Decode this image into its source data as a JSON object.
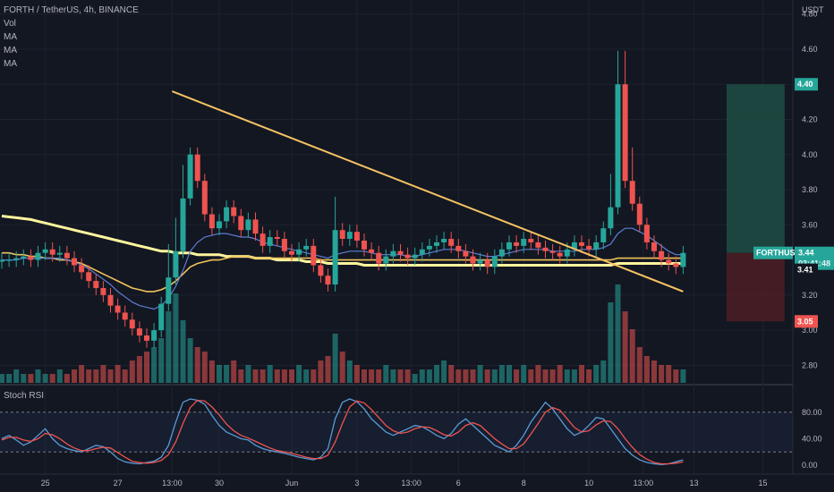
{
  "header": {
    "title": "FORTH / TetherUS, 4h, BINANCE",
    "indicators": [
      "Vol",
      "MA",
      "MA",
      "MA"
    ]
  },
  "currency_label": "USDT",
  "rsi_panel": {
    "title": "Stoch RSI"
  },
  "price_tags": {
    "target": "4.40",
    "symbol": "FORTHUSDT",
    "last": "3.44",
    "countdown": "03:41:48",
    "ma": "3.41",
    "stop": "3.05"
  },
  "colors": {
    "bull": "#26a69a",
    "bear": "#ef5350",
    "ma_long": "#fff59d",
    "ma_mid": "#f0c35a",
    "ma_short": "#5b7fd6",
    "trendline": "#f6c263",
    "rsi_k": "#5b9bd5",
    "rsi_d": "#ef5350",
    "target_zone": "#1e4d44",
    "stop_zone": "#4d1e24"
  },
  "chart_data": [
    {
      "type": "candlestick",
      "title": "FORTH / TetherUS, 4h, BINANCE",
      "ylabel": "USDT",
      "ylim": [
        2.7,
        4.88
      ],
      "yticks": [
        "4.80",
        "4.60",
        "4.40",
        "4.20",
        "4.00",
        "3.80",
        "3.60",
        "3.20",
        "3.00",
        "2.80"
      ],
      "xticks": [
        "25",
        "27",
        "13:00",
        "30",
        "Jun",
        "3",
        "13:00",
        "6",
        "8",
        "10",
        "13:00",
        "13",
        "15"
      ],
      "x_domain": [
        0,
        94
      ],
      "xtick_positions": [
        6,
        16,
        23.5,
        30,
        40,
        49,
        56.5,
        63,
        72,
        81,
        88.5,
        95.5,
        105
      ],
      "close_series": [
        3.4,
        3.4,
        3.41,
        3.42,
        3.4,
        3.44,
        3.46,
        3.43,
        3.44,
        3.41,
        3.37,
        3.33,
        3.28,
        3.24,
        3.2,
        3.14,
        3.1,
        3.06,
        3.01,
        2.97,
        2.94,
        3.0,
        3.15,
        3.3,
        3.45,
        3.75,
        4.0,
        3.85,
        3.66,
        3.58,
        3.62,
        3.7,
        3.65,
        3.57,
        3.63,
        3.55,
        3.48,
        3.53,
        3.52,
        3.45,
        3.43,
        3.46,
        3.48,
        3.37,
        3.31,
        3.26,
        3.57,
        3.52,
        3.56,
        3.51,
        3.46,
        3.44,
        3.38,
        3.42,
        3.45,
        3.43,
        3.41,
        3.43,
        3.46,
        3.48,
        3.5,
        3.52,
        3.48,
        3.45,
        3.42,
        3.38,
        3.4,
        3.36,
        3.42,
        3.46,
        3.5,
        3.48,
        3.52,
        3.5,
        3.47,
        3.45,
        3.44,
        3.42,
        3.46,
        3.5,
        3.48,
        3.46,
        3.5,
        3.58,
        3.7,
        4.4,
        3.85,
        3.72,
        3.6,
        3.5,
        3.45,
        3.4,
        3.38,
        3.36,
        3.44
      ],
      "volume_series": [
        2,
        2,
        3,
        2,
        2,
        3,
        2,
        2,
        3,
        2,
        3,
        4,
        3,
        3,
        4,
        3,
        4,
        3,
        5,
        6,
        7,
        8,
        10,
        16,
        20,
        14,
        10,
        8,
        7,
        5,
        4,
        4,
        5,
        3,
        4,
        3,
        3,
        4,
        3,
        3,
        3,
        4,
        3,
        3,
        5,
        6,
        11,
        7,
        5,
        4,
        3,
        3,
        3,
        4,
        3,
        3,
        3,
        2,
        3,
        3,
        4,
        5,
        4,
        3,
        3,
        3,
        4,
        3,
        3,
        4,
        4,
        3,
        4,
        3,
        4,
        3,
        3,
        4,
        3,
        3,
        4,
        3,
        4,
        5,
        18,
        22,
        16,
        12,
        8,
        6,
        5,
        4,
        4,
        3,
        3
      ],
      "series": [
        {
          "name": "MA",
          "values": [
            3.65,
            3.645,
            3.64,
            3.635,
            3.63,
            3.62,
            3.61,
            3.6,
            3.59,
            3.58,
            3.57,
            3.56,
            3.55,
            3.54,
            3.53,
            3.52,
            3.51,
            3.5,
            3.49,
            3.48,
            3.47,
            3.46,
            3.45,
            3.45,
            3.44,
            3.44,
            3.44,
            3.43,
            3.43,
            3.43,
            3.43,
            3.42,
            3.42,
            3.42,
            3.42,
            3.41,
            3.41,
            3.41,
            3.4,
            3.4,
            3.4,
            3.4,
            3.39,
            3.39,
            3.39,
            3.38,
            3.38,
            3.38,
            3.38,
            3.38,
            3.37,
            3.37,
            3.37,
            3.37,
            3.37,
            3.37,
            3.37,
            3.37,
            3.37,
            3.37,
            3.37,
            3.37,
            3.37,
            3.37,
            3.37,
            3.37,
            3.37,
            3.37,
            3.37,
            3.37,
            3.37,
            3.37,
            3.37,
            3.37,
            3.37,
            3.37,
            3.37,
            3.37,
            3.37,
            3.37,
            3.37,
            3.37,
            3.37,
            3.37,
            3.37,
            3.38,
            3.38,
            3.38,
            3.38,
            3.38,
            3.38,
            3.38,
            3.38,
            3.38,
            3.38
          ]
        },
        {
          "name": "MA",
          "values": [
            3.44,
            3.44,
            3.43,
            3.43,
            3.42,
            3.42,
            3.41,
            3.41,
            3.4,
            3.4,
            3.39,
            3.38,
            3.36,
            3.34,
            3.32,
            3.3,
            3.28,
            3.26,
            3.24,
            3.23,
            3.22,
            3.22,
            3.23,
            3.25,
            3.28,
            3.32,
            3.36,
            3.38,
            3.39,
            3.4,
            3.4,
            3.41,
            3.42,
            3.42,
            3.42,
            3.41,
            3.41,
            3.41,
            3.41,
            3.41,
            3.41,
            3.41,
            3.41,
            3.41,
            3.4,
            3.4,
            3.4,
            3.4,
            3.4,
            3.4,
            3.4,
            3.4,
            3.4,
            3.4,
            3.4,
            3.4,
            3.4,
            3.4,
            3.4,
            3.4,
            3.4,
            3.4,
            3.4,
            3.4,
            3.4,
            3.4,
            3.4,
            3.4,
            3.4,
            3.4,
            3.4,
            3.4,
            3.4,
            3.4,
            3.4,
            3.4,
            3.4,
            3.4,
            3.4,
            3.4,
            3.4,
            3.4,
            3.4,
            3.4,
            3.4,
            3.41,
            3.41,
            3.41,
            3.41,
            3.41,
            3.41,
            3.41,
            3.41,
            3.41,
            3.41
          ]
        },
        {
          "name": "MA",
          "values": [
            3.4,
            3.4,
            3.4,
            3.41,
            3.41,
            3.41,
            3.41,
            3.41,
            3.41,
            3.4,
            3.39,
            3.37,
            3.35,
            3.32,
            3.29,
            3.26,
            3.22,
            3.19,
            3.16,
            3.14,
            3.13,
            3.12,
            3.14,
            3.18,
            3.25,
            3.34,
            3.45,
            3.5,
            3.53,
            3.54,
            3.55,
            3.55,
            3.54,
            3.53,
            3.53,
            3.52,
            3.5,
            3.49,
            3.48,
            3.47,
            3.46,
            3.45,
            3.44,
            3.43,
            3.42,
            3.41,
            3.43,
            3.44,
            3.45,
            3.45,
            3.45,
            3.44,
            3.43,
            3.43,
            3.43,
            3.43,
            3.42,
            3.42,
            3.43,
            3.44,
            3.45,
            3.46,
            3.46,
            3.46,
            3.45,
            3.44,
            3.43,
            3.42,
            3.42,
            3.43,
            3.44,
            3.45,
            3.46,
            3.46,
            3.46,
            3.46,
            3.45,
            3.45,
            3.45,
            3.45,
            3.46,
            3.46,
            3.46,
            3.47,
            3.49,
            3.55,
            3.58,
            3.58,
            3.56,
            3.54,
            3.51,
            3.48,
            3.45,
            3.43,
            3.43
          ]
        }
      ],
      "trendlines": [
        {
          "from": [
            23.5,
            4.36
          ],
          "to": [
            94,
            3.22
          ]
        }
      ],
      "zones": [
        {
          "kind": "target",
          "x_range": [
            100,
            108
          ],
          "y_range": [
            3.44,
            4.4
          ]
        },
        {
          "kind": "stop",
          "x_range": [
            100,
            108
          ],
          "y_range": [
            3.05,
            3.44
          ]
        }
      ]
    },
    {
      "type": "line",
      "title": "Stoch RSI",
      "ylim": [
        0,
        100
      ],
      "yticks": [
        "80.00",
        "40.00",
        "0.00"
      ],
      "bands": [
        20,
        80
      ],
      "series": [
        {
          "name": "K",
          "values": [
            40,
            45,
            38,
            30,
            35,
            45,
            55,
            40,
            30,
            25,
            22,
            20,
            25,
            30,
            28,
            20,
            10,
            5,
            3,
            2,
            4,
            6,
            12,
            30,
            65,
            95,
            100,
            98,
            92,
            75,
            60,
            50,
            45,
            40,
            38,
            30,
            25,
            22,
            20,
            18,
            15,
            12,
            10,
            8,
            12,
            25,
            70,
            95,
            100,
            96,
            85,
            70,
            60,
            50,
            45,
            50,
            55,
            60,
            58,
            52,
            45,
            40,
            48,
            62,
            70,
            60,
            50,
            40,
            30,
            25,
            20,
            30,
            45,
            65,
            80,
            95,
            85,
            70,
            55,
            45,
            50,
            60,
            72,
            70,
            55,
            40,
            25,
            15,
            8,
            4,
            2,
            1,
            2,
            5,
            8
          ]
        },
        {
          "name": "D",
          "values": [
            38,
            42,
            42,
            38,
            36,
            40,
            48,
            46,
            40,
            32,
            26,
            22,
            22,
            25,
            27,
            26,
            19,
            12,
            6,
            4,
            3,
            4,
            7,
            16,
            35,
            63,
            87,
            98,
            97,
            88,
            76,
            62,
            52,
            45,
            41,
            36,
            31,
            26,
            22,
            20,
            18,
            15,
            12,
            10,
            10,
            15,
            35,
            63,
            88,
            97,
            94,
            84,
            72,
            60,
            52,
            48,
            50,
            55,
            58,
            57,
            52,
            46,
            44,
            50,
            60,
            64,
            60,
            50,
            40,
            32,
            25,
            25,
            32,
            47,
            63,
            80,
            87,
            83,
            70,
            57,
            50,
            52,
            61,
            67,
            66,
            55,
            40,
            27,
            16,
            9,
            4,
            2,
            2,
            3,
            5
          ]
        }
      ]
    }
  ]
}
